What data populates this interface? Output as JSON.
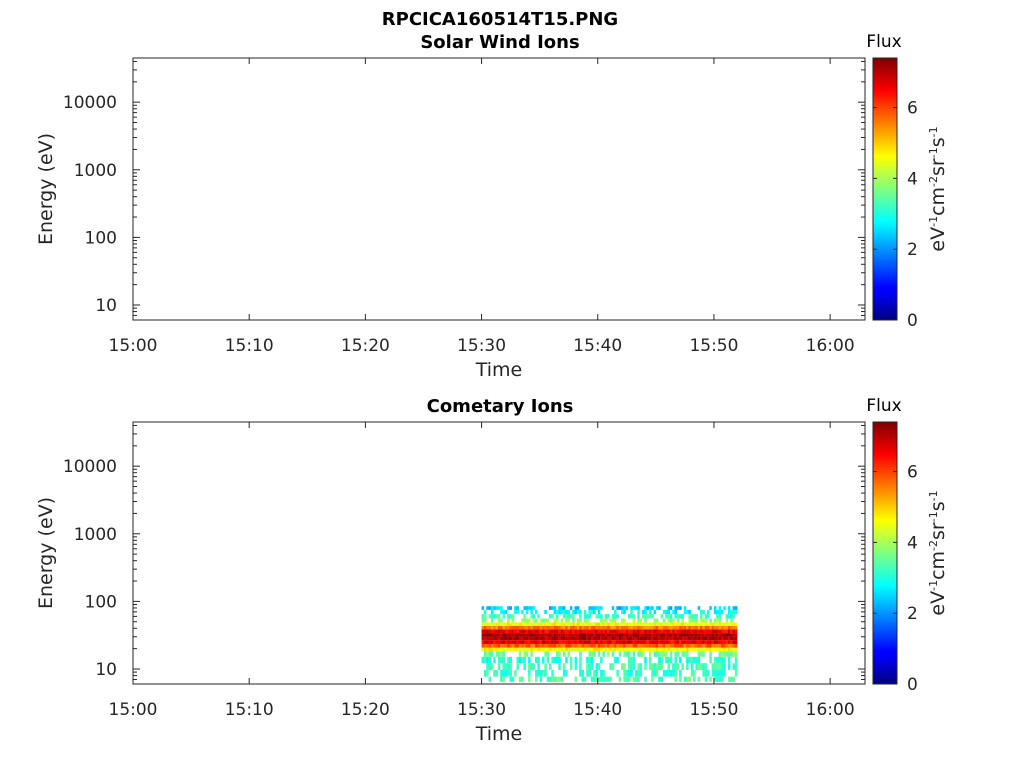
{
  "figure": {
    "title": "RPCICA160514T15.PNG"
  },
  "chart_data": [
    {
      "type": "heatmap",
      "title": "Solar Wind Ions",
      "xlabel": "Time",
      "ylabel": "Energy (eV)",
      "x_ticks": [
        "15:00",
        "15:10",
        "15:20",
        "15:30",
        "15:40",
        "15:50",
        "16:00"
      ],
      "xlim": [
        "15:00",
        "16:03"
      ],
      "y_scale": "log",
      "y_ticks": [
        10,
        100,
        1000,
        10000
      ],
      "y_tick_labels": [
        "10",
        "100",
        "1000",
        "10000"
      ],
      "ylim": [
        6,
        45000
      ],
      "colorbar": {
        "title": "Flux",
        "label": "eV-1cm-2sr-1s-1",
        "range": [
          0,
          7.4
        ],
        "ticks": [
          0,
          2,
          4,
          6
        ],
        "tick_labels": [
          "0",
          "2",
          "4",
          "6"
        ],
        "colormap": "jet"
      },
      "data": []
    },
    {
      "type": "heatmap",
      "title": "Cometary Ions",
      "xlabel": "Time",
      "ylabel": "Energy (eV)",
      "x_ticks": [
        "15:00",
        "15:10",
        "15:20",
        "15:30",
        "15:40",
        "15:50",
        "16:00"
      ],
      "xlim": [
        "15:00",
        "16:03"
      ],
      "y_scale": "log",
      "y_ticks": [
        10,
        100,
        1000,
        10000
      ],
      "y_tick_labels": [
        "10",
        "100",
        "1000",
        "10000"
      ],
      "ylim": [
        6,
        45000
      ],
      "colorbar": {
        "title": "Flux",
        "label": "eV-1cm-2sr-1s-1",
        "range": [
          0,
          7.4
        ],
        "ticks": [
          0,
          2,
          4,
          6
        ],
        "tick_labels": [
          "0",
          "2",
          "4",
          "6"
        ],
        "colormap": "jet"
      },
      "data": {
        "time_range": [
          "15:30",
          "15:52"
        ],
        "energy_bins_eV": [
          7,
          8.5,
          11,
          13.5,
          17,
          19.5,
          22,
          25,
          28.5,
          32,
          36,
          41,
          46,
          52,
          60,
          70,
          80
        ],
        "flux_profile": [
          3.4,
          3.1,
          3.3,
          3.0,
          3.6,
          4.6,
          5.8,
          6.6,
          7.0,
          7.1,
          6.6,
          5.6,
          4.6,
          3.8,
          3.2,
          2.8,
          2.4
        ]
      }
    }
  ]
}
